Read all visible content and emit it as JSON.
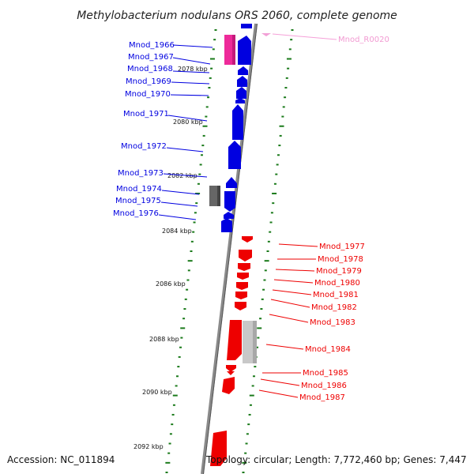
{
  "title": "Methylobacterium nodulans ORS 2060, complete genome",
  "footer": {
    "accession": "Accession: NC_011894",
    "summary": "Topology: circular; Length: 7,772,460 bp; Genes: 7,447"
  },
  "colors": {
    "forward": "#0000e0",
    "reverse": "#ee0000",
    "rna": "#f5a0d8",
    "backbone": "#888888",
    "tick": "#1a7a1a",
    "highlight_pink": "#ee2a9a",
    "gray_dark": "#666666",
    "gray_light": "#c8c8c8"
  },
  "kbp_labels": [
    "2078 kbp",
    "2080 kbp",
    "2082 kbp",
    "2084 kbp",
    "2086 kbp",
    "2088 kbp",
    "2090 kbp",
    "2092 kbp"
  ],
  "left_genes": [
    "Mnod_1966",
    "Mnod_1967",
    "Mnod_1968",
    "Mnod_1969",
    "Mnod_1970",
    "Mnod_1971",
    "Mnod_1972",
    "Mnod_1973",
    "Mnod_1974",
    "Mnod_1975",
    "Mnod_1976"
  ],
  "right_genes": [
    "Mnod_1977",
    "Mnod_1978",
    "Mnod_1979",
    "Mnod_1980",
    "Mnod_1981",
    "Mnod_1982",
    "Mnod_1983",
    "Mnod_1984",
    "Mnod_1985",
    "Mnod_1986",
    "Mnod_1987"
  ],
  "rna_gene": "Mnod_R0020"
}
